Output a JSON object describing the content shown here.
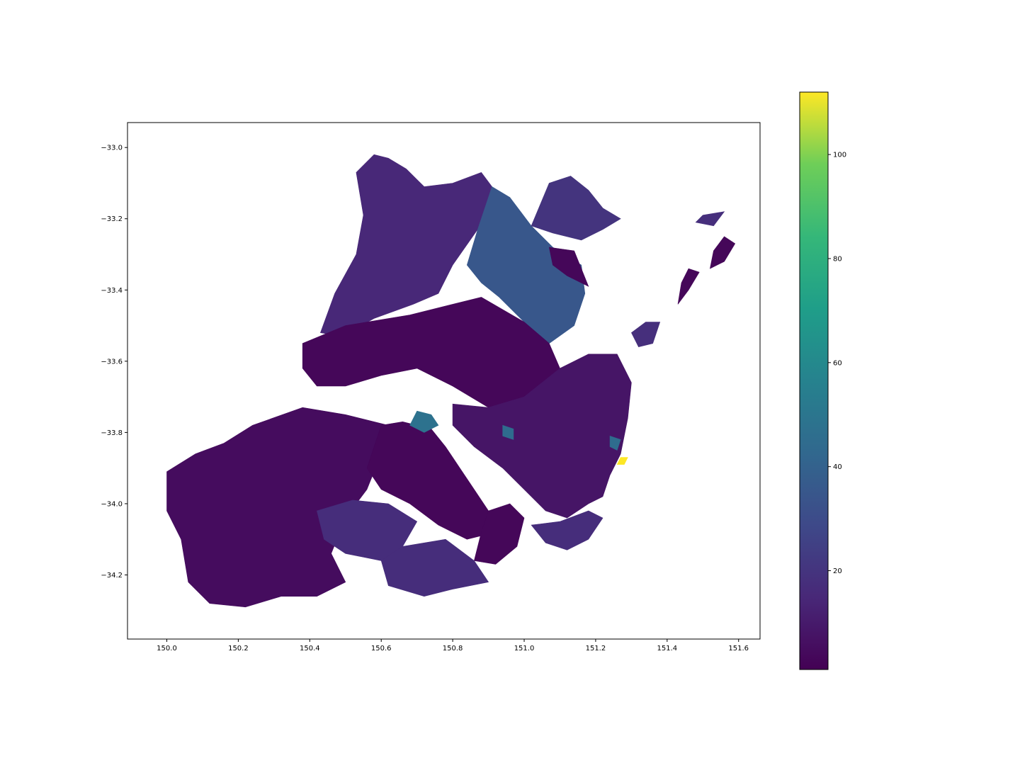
{
  "chart_data": {
    "type": "choropleth",
    "title": "",
    "xlabel": "",
    "ylabel": "",
    "xlim": [
      149.89,
      151.66
    ],
    "ylim": [
      -34.38,
      -32.93
    ],
    "x_ticks": [
      150.0,
      150.2,
      150.4,
      150.6,
      150.8,
      151.0,
      151.2,
      151.4,
      151.6
    ],
    "x_tick_labels": [
      "150.0",
      "150.2",
      "150.4",
      "150.6",
      "150.8",
      "151.0",
      "151.2",
      "151.4",
      "151.6"
    ],
    "y_ticks": [
      -33.0,
      -33.2,
      -33.4,
      -33.6,
      -33.8,
      -34.0,
      -34.2
    ],
    "y_tick_labels": [
      "−33.0",
      "−33.2",
      "−33.4",
      "−33.6",
      "−33.8",
      "−34.0",
      "−34.2"
    ],
    "grid": false,
    "colormap": "viridis",
    "colorbar": {
      "range": [
        1,
        112
      ],
      "ticks": [
        20,
        40,
        60,
        80,
        100
      ],
      "tick_labels": [
        "20",
        "40",
        "60",
        "80",
        "100"
      ]
    },
    "regions": [
      {
        "value": 15,
        "outline": [
          [
            150.53,
            -33.07
          ],
          [
            150.58,
            -33.02
          ],
          [
            150.62,
            -33.03
          ],
          [
            150.67,
            -33.06
          ],
          [
            150.72,
            -33.11
          ],
          [
            150.8,
            -33.1
          ],
          [
            150.88,
            -33.07
          ],
          [
            150.91,
            -33.11
          ],
          [
            150.87,
            -33.23
          ],
          [
            150.8,
            -33.33
          ],
          [
            150.76,
            -33.41
          ],
          [
            150.69,
            -33.44
          ],
          [
            150.58,
            -33.48
          ],
          [
            150.49,
            -33.53
          ],
          [
            150.43,
            -33.52
          ],
          [
            150.47,
            -33.41
          ],
          [
            150.53,
            -33.3
          ],
          [
            150.55,
            -33.19
          ]
        ]
      },
      {
        "value": 35,
        "outline": [
          [
            150.91,
            -33.11
          ],
          [
            150.96,
            -33.14
          ],
          [
            151.02,
            -33.22
          ],
          [
            151.08,
            -33.28
          ],
          [
            151.16,
            -33.33
          ],
          [
            151.17,
            -33.41
          ],
          [
            151.14,
            -33.5
          ],
          [
            151.07,
            -33.55
          ],
          [
            151.0,
            -33.49
          ],
          [
            150.93,
            -33.42
          ],
          [
            150.88,
            -33.38
          ],
          [
            150.84,
            -33.33
          ],
          [
            150.87,
            -33.23
          ]
        ]
      },
      {
        "value": 20,
        "outline": [
          [
            151.02,
            -33.22
          ],
          [
            151.07,
            -33.1
          ],
          [
            151.13,
            -33.08
          ],
          [
            151.18,
            -33.12
          ],
          [
            151.22,
            -33.17
          ],
          [
            151.27,
            -33.2
          ],
          [
            151.22,
            -33.23
          ],
          [
            151.16,
            -33.26
          ],
          [
            151.08,
            -33.24
          ]
        ]
      },
      {
        "value": 3,
        "outline": [
          [
            151.07,
            -33.28
          ],
          [
            151.14,
            -33.29
          ],
          [
            151.16,
            -33.34
          ],
          [
            151.18,
            -33.39
          ],
          [
            151.12,
            -33.36
          ],
          [
            151.08,
            -33.33
          ]
        ]
      },
      {
        "value": 3,
        "outline": [
          [
            150.38,
            -33.55
          ],
          [
            150.5,
            -33.5
          ],
          [
            150.68,
            -33.47
          ],
          [
            150.88,
            -33.42
          ],
          [
            151.0,
            -33.49
          ],
          [
            151.07,
            -33.55
          ],
          [
            151.1,
            -33.62
          ],
          [
            151.0,
            -33.7
          ],
          [
            150.9,
            -33.73
          ],
          [
            150.8,
            -33.67
          ],
          [
            150.7,
            -33.62
          ],
          [
            150.6,
            -33.64
          ],
          [
            150.5,
            -33.67
          ],
          [
            150.42,
            -33.67
          ],
          [
            150.38,
            -33.62
          ]
        ]
      },
      {
        "value": 5,
        "outline": [
          [
            150.0,
            -33.91
          ],
          [
            150.08,
            -33.86
          ],
          [
            150.16,
            -33.83
          ],
          [
            150.24,
            -33.78
          ],
          [
            150.38,
            -33.73
          ],
          [
            150.5,
            -33.75
          ],
          [
            150.62,
            -33.78
          ],
          [
            150.6,
            -33.86
          ],
          [
            150.56,
            -33.96
          ],
          [
            150.5,
            -34.04
          ],
          [
            150.46,
            -34.14
          ],
          [
            150.5,
            -34.22
          ],
          [
            150.42,
            -34.26
          ],
          [
            150.32,
            -34.26
          ],
          [
            150.22,
            -34.29
          ],
          [
            150.12,
            -34.28
          ],
          [
            150.06,
            -34.22
          ],
          [
            150.04,
            -34.1
          ],
          [
            150.0,
            -34.02
          ]
        ]
      },
      {
        "value": 17,
        "outline": [
          [
            150.42,
            -34.02
          ],
          [
            150.52,
            -33.99
          ],
          [
            150.62,
            -34.0
          ],
          [
            150.7,
            -34.05
          ],
          [
            150.66,
            -34.12
          ],
          [
            150.6,
            -34.16
          ],
          [
            150.5,
            -34.14
          ],
          [
            150.44,
            -34.1
          ]
        ]
      },
      {
        "value": 17,
        "outline": [
          [
            150.66,
            -34.12
          ],
          [
            150.78,
            -34.1
          ],
          [
            150.86,
            -34.16
          ],
          [
            150.9,
            -34.22
          ],
          [
            150.8,
            -34.24
          ],
          [
            150.72,
            -34.26
          ],
          [
            150.62,
            -34.23
          ],
          [
            150.6,
            -34.16
          ]
        ]
      },
      {
        "value": 3,
        "outline": [
          [
            150.6,
            -33.78
          ],
          [
            150.66,
            -33.77
          ],
          [
            150.74,
            -33.79
          ],
          [
            150.78,
            -33.84
          ],
          [
            150.82,
            -33.9
          ],
          [
            150.86,
            -33.96
          ],
          [
            150.9,
            -34.02
          ],
          [
            150.92,
            -34.08
          ],
          [
            150.84,
            -34.1
          ],
          [
            150.76,
            -34.06
          ],
          [
            150.68,
            -34.0
          ],
          [
            150.6,
            -33.96
          ],
          [
            150.56,
            -33.9
          ]
        ]
      },
      {
        "value": 3,
        "outline": [
          [
            150.9,
            -34.02
          ],
          [
            150.96,
            -34.0
          ],
          [
            151.0,
            -34.04
          ],
          [
            150.98,
            -34.12
          ],
          [
            150.92,
            -34.17
          ],
          [
            150.86,
            -34.16
          ],
          [
            150.88,
            -34.08
          ]
        ]
      },
      {
        "value": 8,
        "outline": [
          [
            150.8,
            -33.72
          ],
          [
            150.9,
            -33.73
          ],
          [
            151.0,
            -33.7
          ],
          [
            151.1,
            -33.62
          ],
          [
            151.18,
            -33.58
          ],
          [
            151.26,
            -33.58
          ],
          [
            151.3,
            -33.66
          ],
          [
            151.29,
            -33.76
          ],
          [
            151.27,
            -33.86
          ],
          [
            151.24,
            -33.92
          ],
          [
            151.22,
            -33.98
          ],
          [
            151.18,
            -34.0
          ],
          [
            151.12,
            -34.04
          ],
          [
            151.06,
            -34.02
          ],
          [
            151.0,
            -33.96
          ],
          [
            150.94,
            -33.9
          ],
          [
            150.86,
            -33.84
          ],
          [
            150.8,
            -33.78
          ]
        ]
      },
      {
        "value": 17,
        "outline": [
          [
            151.02,
            -34.06
          ],
          [
            151.1,
            -34.05
          ],
          [
            151.18,
            -34.02
          ],
          [
            151.22,
            -34.04
          ],
          [
            151.18,
            -34.1
          ],
          [
            151.12,
            -34.13
          ],
          [
            151.06,
            -34.11
          ]
        ]
      },
      {
        "value": 18,
        "outline": [
          [
            151.3,
            -33.52
          ],
          [
            151.34,
            -33.49
          ],
          [
            151.38,
            -33.49
          ],
          [
            151.36,
            -33.55
          ],
          [
            151.32,
            -33.56
          ]
        ]
      },
      {
        "value": 18,
        "outline": [
          [
            151.5,
            -33.19
          ],
          [
            151.56,
            -33.18
          ],
          [
            151.53,
            -33.22
          ],
          [
            151.48,
            -33.21
          ]
        ]
      },
      {
        "value": 3,
        "outline": [
          [
            151.56,
            -33.25
          ],
          [
            151.59,
            -33.27
          ],
          [
            151.56,
            -33.32
          ],
          [
            151.52,
            -33.34
          ],
          [
            151.53,
            -33.29
          ]
        ]
      },
      {
        "value": 3,
        "outline": [
          [
            151.46,
            -33.34
          ],
          [
            151.49,
            -33.35
          ],
          [
            151.46,
            -33.4
          ],
          [
            151.43,
            -33.44
          ],
          [
            151.44,
            -33.38
          ]
        ]
      },
      {
        "value": 48,
        "outline": [
          [
            150.7,
            -33.74
          ],
          [
            150.74,
            -33.75
          ],
          [
            150.76,
            -33.78
          ],
          [
            150.72,
            -33.8
          ],
          [
            150.68,
            -33.78
          ]
        ]
      },
      {
        "value": 45,
        "outline": [
          [
            150.94,
            -33.78
          ],
          [
            150.97,
            -33.79
          ],
          [
            150.97,
            -33.82
          ],
          [
            150.94,
            -33.81
          ]
        ]
      },
      {
        "value": 45,
        "outline": [
          [
            151.24,
            -33.81
          ],
          [
            151.27,
            -33.82
          ],
          [
            151.26,
            -33.85
          ],
          [
            151.24,
            -33.84
          ]
        ]
      },
      {
        "value": 112,
        "outline": [
          [
            151.27,
            -33.87
          ],
          [
            151.29,
            -33.87
          ],
          [
            151.28,
            -33.89
          ],
          [
            151.26,
            -33.89
          ]
        ]
      }
    ]
  }
}
